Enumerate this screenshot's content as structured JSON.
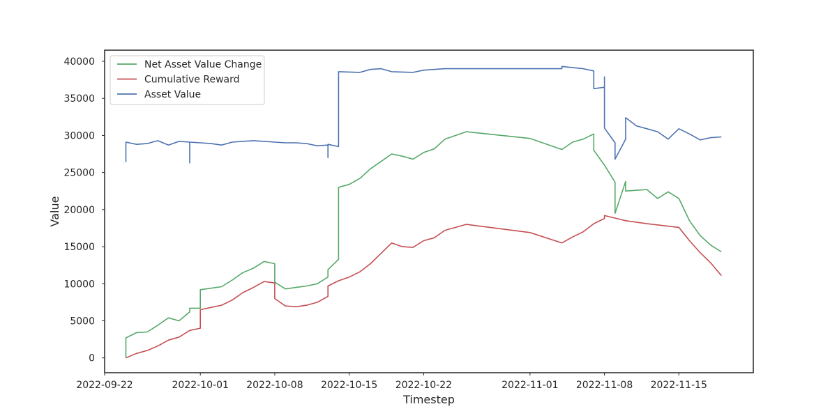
{
  "chart_data": {
    "type": "line",
    "title": "",
    "xlabel": "Timestep",
    "ylabel": "Value",
    "x_type": "date",
    "xlim": [
      "2022-09-22",
      "2022-11-22"
    ],
    "ylim": [
      -2000,
      41500
    ],
    "x_ticks": [
      "2022-09-22",
      "2022-10-01",
      "2022-10-08",
      "2022-10-15",
      "2022-10-22",
      "2022-11-01",
      "2022-11-08",
      "2022-11-15"
    ],
    "y_ticks": [
      0,
      5000,
      10000,
      15000,
      20000,
      25000,
      30000,
      35000,
      40000
    ],
    "y_tick_labels": [
      "0",
      "5000",
      "10000",
      "15000",
      "20000",
      "25000",
      "30000",
      "35000",
      "40000"
    ],
    "grid": false,
    "legend_position": "top-left",
    "series": [
      {
        "name": "Net Asset Value Change",
        "color": "#55a868",
        "points": [
          [
            "2022-09-24",
            0
          ],
          [
            "2022-09-24",
            2700
          ],
          [
            "2022-09-25",
            3400
          ],
          [
            "2022-09-26",
            3500
          ],
          [
            "2022-09-27",
            4400
          ],
          [
            "2022-09-28",
            5400
          ],
          [
            "2022-09-29",
            5000
          ],
          [
            "2022-09-30",
            6200
          ],
          [
            "2022-09-30",
            6700
          ],
          [
            "2022-10-01",
            6700
          ],
          [
            "2022-10-01",
            9200
          ],
          [
            "2022-10-02",
            9400
          ],
          [
            "2022-10-03",
            9600
          ],
          [
            "2022-10-04",
            10500
          ],
          [
            "2022-10-05",
            11500
          ],
          [
            "2022-10-06",
            12100
          ],
          [
            "2022-10-07",
            13000
          ],
          [
            "2022-10-08",
            12700
          ],
          [
            "2022-10-08",
            10200
          ],
          [
            "2022-10-09",
            9300
          ],
          [
            "2022-10-10",
            9500
          ],
          [
            "2022-10-11",
            9700
          ],
          [
            "2022-10-12",
            10000
          ],
          [
            "2022-10-13",
            10900
          ],
          [
            "2022-10-13",
            11900
          ],
          [
            "2022-10-14",
            13300
          ],
          [
            "2022-10-14",
            23000
          ],
          [
            "2022-10-15",
            23400
          ],
          [
            "2022-10-16",
            24200
          ],
          [
            "2022-10-17",
            25500
          ],
          [
            "2022-10-18",
            26500
          ],
          [
            "2022-10-19",
            27500
          ],
          [
            "2022-10-20",
            27200
          ],
          [
            "2022-10-21",
            26800
          ],
          [
            "2022-10-22",
            27700
          ],
          [
            "2022-10-23",
            28200
          ],
          [
            "2022-10-24",
            29500
          ],
          [
            "2022-10-26",
            30500
          ],
          [
            "2022-11-01",
            29600
          ],
          [
            "2022-11-04",
            28100
          ],
          [
            "2022-11-05",
            29100
          ],
          [
            "2022-11-06",
            29500
          ],
          [
            "2022-11-07",
            30200
          ],
          [
            "2022-11-07",
            28000
          ],
          [
            "2022-11-08",
            26000
          ],
          [
            "2022-11-09",
            23700
          ],
          [
            "2022-11-09",
            19500
          ],
          [
            "2022-11-10",
            23800
          ],
          [
            "2022-11-10",
            22500
          ],
          [
            "2022-11-12",
            22700
          ],
          [
            "2022-11-13",
            21500
          ],
          [
            "2022-11-14",
            22400
          ],
          [
            "2022-11-15",
            21500
          ],
          [
            "2022-11-16",
            18500
          ],
          [
            "2022-11-17",
            16500
          ],
          [
            "2022-11-18",
            15200
          ],
          [
            "2022-11-19",
            14300
          ]
        ]
      },
      {
        "name": "Cumulative Reward",
        "color": "#c44e52",
        "points": [
          [
            "2022-09-24",
            0
          ],
          [
            "2022-09-25",
            600
          ],
          [
            "2022-09-26",
            1000
          ],
          [
            "2022-09-27",
            1600
          ],
          [
            "2022-09-28",
            2400
          ],
          [
            "2022-09-29",
            2800
          ],
          [
            "2022-09-30",
            3700
          ],
          [
            "2022-10-01",
            4000
          ],
          [
            "2022-10-01",
            6500
          ],
          [
            "2022-10-02",
            6800
          ],
          [
            "2022-10-03",
            7100
          ],
          [
            "2022-10-04",
            7800
          ],
          [
            "2022-10-05",
            8800
          ],
          [
            "2022-10-06",
            9500
          ],
          [
            "2022-10-07",
            10300
          ],
          [
            "2022-10-08",
            10100
          ],
          [
            "2022-10-08",
            8000
          ],
          [
            "2022-10-09",
            7000
          ],
          [
            "2022-10-10",
            6900
          ],
          [
            "2022-10-11",
            7100
          ],
          [
            "2022-10-12",
            7500
          ],
          [
            "2022-10-13",
            8300
          ],
          [
            "2022-10-13",
            8600
          ],
          [
            "2022-10-13",
            9700
          ],
          [
            "2022-10-14",
            10400
          ],
          [
            "2022-10-15",
            10900
          ],
          [
            "2022-10-16",
            11600
          ],
          [
            "2022-10-17",
            12700
          ],
          [
            "2022-10-18",
            14100
          ],
          [
            "2022-10-19",
            15500
          ],
          [
            "2022-10-20",
            15000
          ],
          [
            "2022-10-21",
            14900
          ],
          [
            "2022-10-22",
            15800
          ],
          [
            "2022-10-23",
            16200
          ],
          [
            "2022-10-24",
            17200
          ],
          [
            "2022-10-26",
            18000
          ],
          [
            "2022-11-01",
            16900
          ],
          [
            "2022-11-04",
            15500
          ],
          [
            "2022-11-05",
            16300
          ],
          [
            "2022-11-06",
            17000
          ],
          [
            "2022-11-07",
            18100
          ],
          [
            "2022-11-08",
            18800
          ],
          [
            "2022-11-08",
            19200
          ],
          [
            "2022-11-10",
            18500
          ],
          [
            "2022-11-12",
            18100
          ],
          [
            "2022-11-15",
            17600
          ],
          [
            "2022-11-16",
            15800
          ],
          [
            "2022-11-17",
            14200
          ],
          [
            "2022-11-18",
            12800
          ],
          [
            "2022-11-19",
            11100
          ]
        ]
      },
      {
        "name": "Asset Value",
        "color": "#4c72b0",
        "points": [
          [
            "2022-09-24",
            26400
          ],
          [
            "2022-09-24",
            29100
          ],
          [
            "2022-09-25",
            28800
          ],
          [
            "2022-09-26",
            28900
          ],
          [
            "2022-09-27",
            29300
          ],
          [
            "2022-09-28",
            28700
          ],
          [
            "2022-09-29",
            29200
          ],
          [
            "2022-09-30",
            29100
          ],
          [
            "2022-09-30",
            26300
          ],
          [
            "2022-09-30",
            29100
          ],
          [
            "2022-10-01",
            29000
          ],
          [
            "2022-10-02",
            28900
          ],
          [
            "2022-10-03",
            28700
          ],
          [
            "2022-10-04",
            29100
          ],
          [
            "2022-10-05",
            29200
          ],
          [
            "2022-10-06",
            29300
          ],
          [
            "2022-10-07",
            29200
          ],
          [
            "2022-10-08",
            29100
          ],
          [
            "2022-10-09",
            29000
          ],
          [
            "2022-10-10",
            29000
          ],
          [
            "2022-10-11",
            28900
          ],
          [
            "2022-10-12",
            28600
          ],
          [
            "2022-10-13",
            28700
          ],
          [
            "2022-10-13",
            27000
          ],
          [
            "2022-10-13",
            28800
          ],
          [
            "2022-10-14",
            28500
          ],
          [
            "2022-10-14",
            28800
          ],
          [
            "2022-10-14",
            28700
          ],
          [
            "2022-10-14",
            38600
          ],
          [
            "2022-10-16",
            38500
          ],
          [
            "2022-10-17",
            38900
          ],
          [
            "2022-10-18",
            39000
          ],
          [
            "2022-10-19",
            38600
          ],
          [
            "2022-10-21",
            38500
          ],
          [
            "2022-10-22",
            38800
          ],
          [
            "2022-10-24",
            39000
          ],
          [
            "2022-11-04",
            39000
          ],
          [
            "2022-11-04",
            39300
          ],
          [
            "2022-11-06",
            39000
          ],
          [
            "2022-11-07",
            38700
          ],
          [
            "2022-11-07",
            36300
          ],
          [
            "2022-11-08",
            36500
          ],
          [
            "2022-11-08",
            37900
          ],
          [
            "2022-11-08",
            32500
          ],
          [
            "2022-11-08",
            31000
          ],
          [
            "2022-11-09",
            29000
          ],
          [
            "2022-11-09",
            26800
          ],
          [
            "2022-11-10",
            29500
          ],
          [
            "2022-11-10",
            32400
          ],
          [
            "2022-11-11",
            31300
          ],
          [
            "2022-11-12",
            30900
          ],
          [
            "2022-11-13",
            30500
          ],
          [
            "2022-11-14",
            29500
          ],
          [
            "2022-11-15",
            30900
          ],
          [
            "2022-11-16",
            30200
          ],
          [
            "2022-11-17",
            29400
          ],
          [
            "2022-11-18",
            29700
          ],
          [
            "2022-11-19",
            29800
          ]
        ]
      }
    ]
  }
}
